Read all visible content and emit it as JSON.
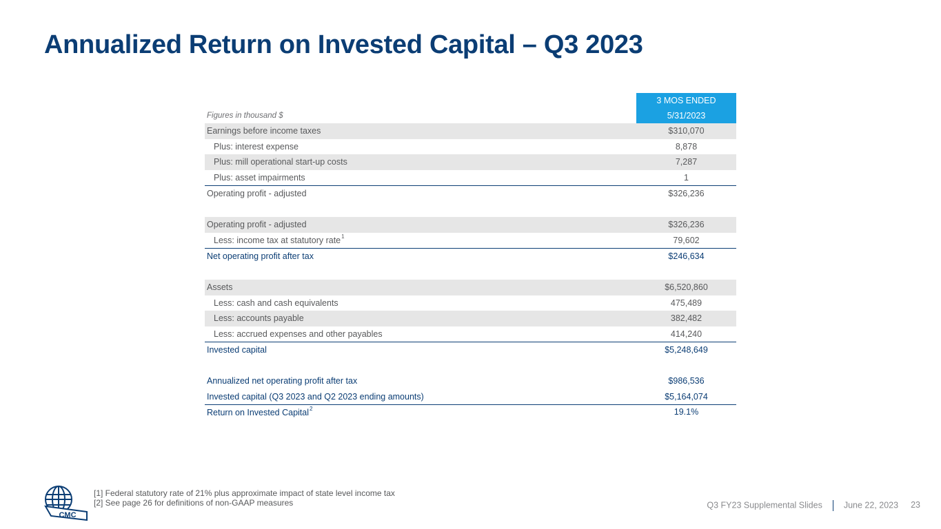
{
  "slide": {
    "title": "Annualized Return on Invested Capital – Q3 2023"
  },
  "table": {
    "units_note": "Figures in thousand $",
    "header_line1": "3 MOS ENDED",
    "header_line2": "5/31/2023",
    "rows": [
      {
        "label": "Earnings before income taxes",
        "value": "$310,070"
      },
      {
        "label": "Plus: interest expense",
        "value": "8,878"
      },
      {
        "label": "Plus: mill operational start-up costs",
        "value": "7,287"
      },
      {
        "label": "Plus: asset impairments",
        "value": "1"
      },
      {
        "label": "Operating profit - adjusted",
        "value": "$326,236"
      },
      {
        "label": "Operating profit - adjusted",
        "value": "$326,236"
      },
      {
        "label": "Less: income tax at statutory rate",
        "sup": "1",
        "value": "79,602"
      },
      {
        "label": "Net operating profit after tax",
        "value": "$246,634"
      },
      {
        "label": "Assets",
        "value": "$6,520,860"
      },
      {
        "label": "Less: cash and cash equivalents",
        "value": "475,489"
      },
      {
        "label": "Less: accounts payable",
        "value": "382,482"
      },
      {
        "label": "Less: accrued expenses and other payables",
        "value": "414,240"
      },
      {
        "label": "Invested capital",
        "value": "$5,248,649"
      },
      {
        "label": "Annualized net operating profit after tax",
        "value": "$986,536"
      },
      {
        "label": "Invested capital (Q3 2023 and Q2 2023 ending amounts)",
        "value": "$5,164,074"
      },
      {
        "label": "Return on Invested Capital",
        "sup": "2",
        "value": "19.1%"
      }
    ]
  },
  "footnotes": [
    "[1] Federal statutory rate of 21% plus approximate impact of state level income tax",
    "[2] See page 26 for definitions of non-GAAP measures"
  ],
  "logo": {
    "text": "CMC",
    "color": "#0b3d74"
  },
  "footer": {
    "deck_name": "Q3 FY23 Supplemental Slides",
    "date": "June 22, 2023",
    "page_number": "23"
  },
  "colors": {
    "brand_navy": "#0b3d74",
    "header_blue": "#1ba1e2",
    "shade_gray": "#e6e6e6"
  }
}
